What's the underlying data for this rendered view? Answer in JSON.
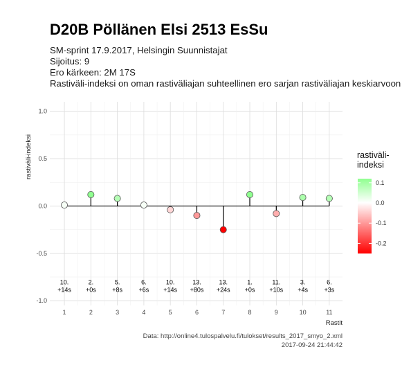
{
  "header": {
    "title": "D20B Pöllänen Elsi 2513 EsSu",
    "subtitle_lines": [
      "SM-sprint 17.9.2017, Helsingin Suunnistajat",
      "Sijoitus: 9",
      "Ero kärkeen: 2M 17S",
      "Rastiväli-indeksi on oman rastiväliajan suhteellinen ero sarjan rastiväliajan keskiarvoon"
    ]
  },
  "caption": {
    "source": "Data: http://online4.tulospalvelu.fi/tulokset/results_2017_smyo_2.xml",
    "timestamp": "2017-09-24 21:44:42"
  },
  "chart_data": {
    "type": "scatter",
    "style": "lollipop",
    "xlabel": "Rastit",
    "ylabel": "rastiväli-indeksi",
    "ylim": [
      -1.05,
      1.1
    ],
    "xlim": [
      0.45,
      11.5
    ],
    "y_ticks": [
      "1.0",
      "0.5",
      "0.0",
      "-0.5",
      "-1.0"
    ],
    "y_tick_values": [
      1.0,
      0.5,
      0.0,
      -0.5,
      -1.0
    ],
    "x": [
      1,
      2,
      3,
      4,
      5,
      6,
      7,
      8,
      9,
      10,
      11
    ],
    "x_tick_labels": [
      "1",
      "2",
      "3",
      "4",
      "5",
      "6",
      "7",
      "8",
      "9",
      "10",
      "11"
    ],
    "values": [
      0.01,
      0.12,
      0.08,
      0.01,
      -0.04,
      -0.1,
      -0.25,
      0.12,
      -0.08,
      0.09,
      0.08
    ],
    "annotations": [
      {
        "rank": "10.",
        "diff": "+14s"
      },
      {
        "rank": "2.",
        "diff": "+0s"
      },
      {
        "rank": "5.",
        "diff": "+8s"
      },
      {
        "rank": "6.",
        "diff": "+6s"
      },
      {
        "rank": "10.",
        "diff": "+14s"
      },
      {
        "rank": "13.",
        "diff": "+80s"
      },
      {
        "rank": "13.",
        "diff": "+24s"
      },
      {
        "rank": "1.",
        "diff": "+0s"
      },
      {
        "rank": "11.",
        "diff": "+10s"
      },
      {
        "rank": "3.",
        "diff": "+4s"
      },
      {
        "rank": "6.",
        "diff": "+3s"
      }
    ],
    "annotation_y": -0.9,
    "grid": true,
    "legend": {
      "title_lines": [
        "rastiväli-",
        "indeksi"
      ],
      "position": "right",
      "ticks": [
        "0.1",
        "0.0",
        "-0.1",
        "-0.2"
      ],
      "tick_values": [
        0.1,
        0.0,
        -0.1,
        -0.2
      ],
      "range": [
        -0.25,
        0.12
      ]
    },
    "colors": {
      "positive": "#90ff90",
      "neutral": "#ffffff",
      "negative": "#ff0000"
    }
  }
}
